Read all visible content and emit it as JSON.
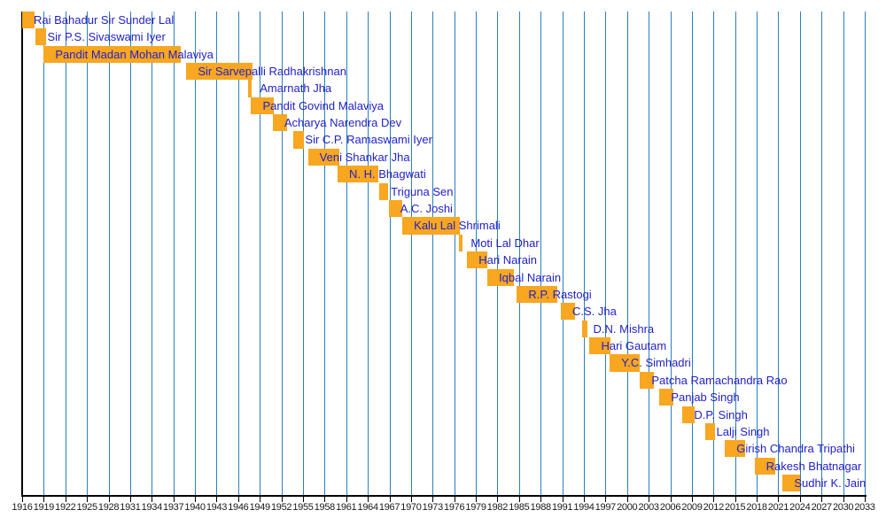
{
  "chart_data": {
    "type": "bar",
    "subtype": "timeline-gantt",
    "legend": "none",
    "grid": "vertical",
    "x_axis": {
      "min": 1916,
      "max": 2033,
      "tick_step": 3,
      "tick_labels": [
        "1916",
        "1919",
        "1922",
        "1925",
        "1928",
        "1931",
        "1934",
        "1937",
        "1940",
        "1943",
        "1946",
        "1949",
        "1952",
        "1955",
        "1958",
        "1961",
        "1964",
        "1967",
        "1970",
        "1973",
        "1976",
        "1979",
        "1982",
        "1985",
        "1988",
        "1991",
        "1994",
        "1997",
        "2000",
        "2003",
        "2006",
        "2009",
        "2012",
        "2015",
        "2018",
        "2021",
        "2024",
        "2027",
        "2030",
        "2033"
      ]
    },
    "bars": [
      {
        "name": "Rai Bahadur Sir Sunder Lal",
        "start": 1916.0,
        "end": 1917.7
      },
      {
        "name": "Sir P.S. Sivaswami Iyer",
        "start": 1917.9,
        "end": 1919.3
      },
      {
        "name": "Pandit Madan Mohan Malaviya",
        "start": 1919.0,
        "end": 1938.0
      },
      {
        "name": "Sir Sarvepalli Radhakrishnan",
        "start": 1938.8,
        "end": 1948.0
      },
      {
        "name": "Amarnath Jha",
        "start": 1947.4,
        "end": 1947.9
      },
      {
        "name": "Pandit Govind Malaviya",
        "start": 1947.8,
        "end": 1950.9
      },
      {
        "name": "Acharya Narendra Dev",
        "start": 1950.8,
        "end": 1952.8
      },
      {
        "name": "Sir C.P. Ramaswami Iyer",
        "start": 1953.7,
        "end": 1955.1
      },
      {
        "name": "Veni Shankar Jha",
        "start": 1955.7,
        "end": 1960.0
      },
      {
        "name": "N. H. Bhagwati",
        "start": 1959.8,
        "end": 1965.5
      },
      {
        "name": "Triguna Sen",
        "start": 1965.6,
        "end": 1966.8
      },
      {
        "name": "A.C. Joshi",
        "start": 1966.9,
        "end": 1968.8
      },
      {
        "name": "Kalu Lal Shrimali",
        "start": 1968.8,
        "end": 1976.8
      },
      {
        "name": "Moti Lal Dhar",
        "start": 1976.7,
        "end": 1977.1
      },
      {
        "name": "Hari Narain",
        "start": 1977.8,
        "end": 1980.6
      },
      {
        "name": "Iqbal Narain",
        "start": 1980.6,
        "end": 1984.3
      },
      {
        "name": "R.P. Rastogi",
        "start": 1984.7,
        "end": 1990.3
      },
      {
        "name": "C.S. Jha",
        "start": 1990.8,
        "end": 1992.8
      },
      {
        "name": "D.N. Mishra",
        "start": 1993.7,
        "end": 1994.5
      },
      {
        "name": "Hari Gautam",
        "start": 1994.8,
        "end": 1997.7
      },
      {
        "name": "Y.C. Simhadri",
        "start": 1997.6,
        "end": 2001.7
      },
      {
        "name": "Patcha Ramachandra Rao",
        "start": 2001.8,
        "end": 2003.7
      },
      {
        "name": "Panjab Singh",
        "start": 2004.5,
        "end": 2006.4
      },
      {
        "name": "D.P. Singh",
        "start": 2007.7,
        "end": 2009.4
      },
      {
        "name": "Lalji Singh",
        "start": 2010.8,
        "end": 2012.2
      },
      {
        "name": "Girish Chandra Tripathi",
        "start": 2013.6,
        "end": 2016.4
      },
      {
        "name": "Rakesh Bhatnagar",
        "start": 2017.7,
        "end": 2020.6
      },
      {
        "name": "Sudhir K. Jain",
        "start": 2021.6,
        "end": 2024.0
      }
    ],
    "colors": {
      "bar": "#f9a620",
      "label_text": "#2121c8",
      "gridline": "#2a7fbe",
      "axis": "#000000",
      "tick_label": "#1a1a1a",
      "background": "#ffffff"
    }
  }
}
